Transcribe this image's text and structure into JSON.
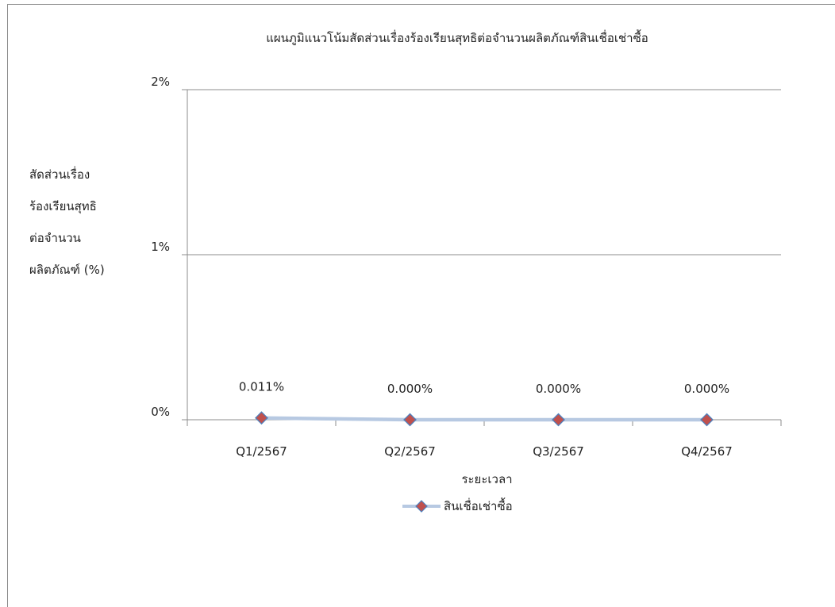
{
  "chart_data": {
    "type": "line",
    "title": "แผนภูมิแนวโน้มสัดส่วนเรื่องร้องเรียนสุทธิต่อจำนวนผลิตภัณฑ์สินเชื่อเช่าซื้อ",
    "ylabel_lines": [
      "สัดส่วนเรื่อง",
      "ร้องเรียนสุทธิ",
      "ต่อจำนวน",
      "ผลิตภัณฑ์ (%)"
    ],
    "xlabel": "ระยะเวลา",
    "categories": [
      "Q1/2567",
      "Q2/2567",
      "Q3/2567",
      "Q4/2567"
    ],
    "series": [
      {
        "name": "สินเชื่อเช่าซื้อ",
        "values": [
          0.011,
          0.0,
          0.0,
          0.0
        ],
        "data_labels": [
          "0.011%",
          "0.000%",
          "0.000%",
          "0.000%"
        ],
        "line_color": "#b7c9e2",
        "marker": "diamond",
        "marker_fill": "#c0504d",
        "marker_stroke": "#4f81bd"
      }
    ],
    "yticks": [
      "0%",
      "1%",
      "2%"
    ],
    "ylim": [
      0,
      2
    ],
    "grid": true,
    "legend_position": "bottom"
  }
}
